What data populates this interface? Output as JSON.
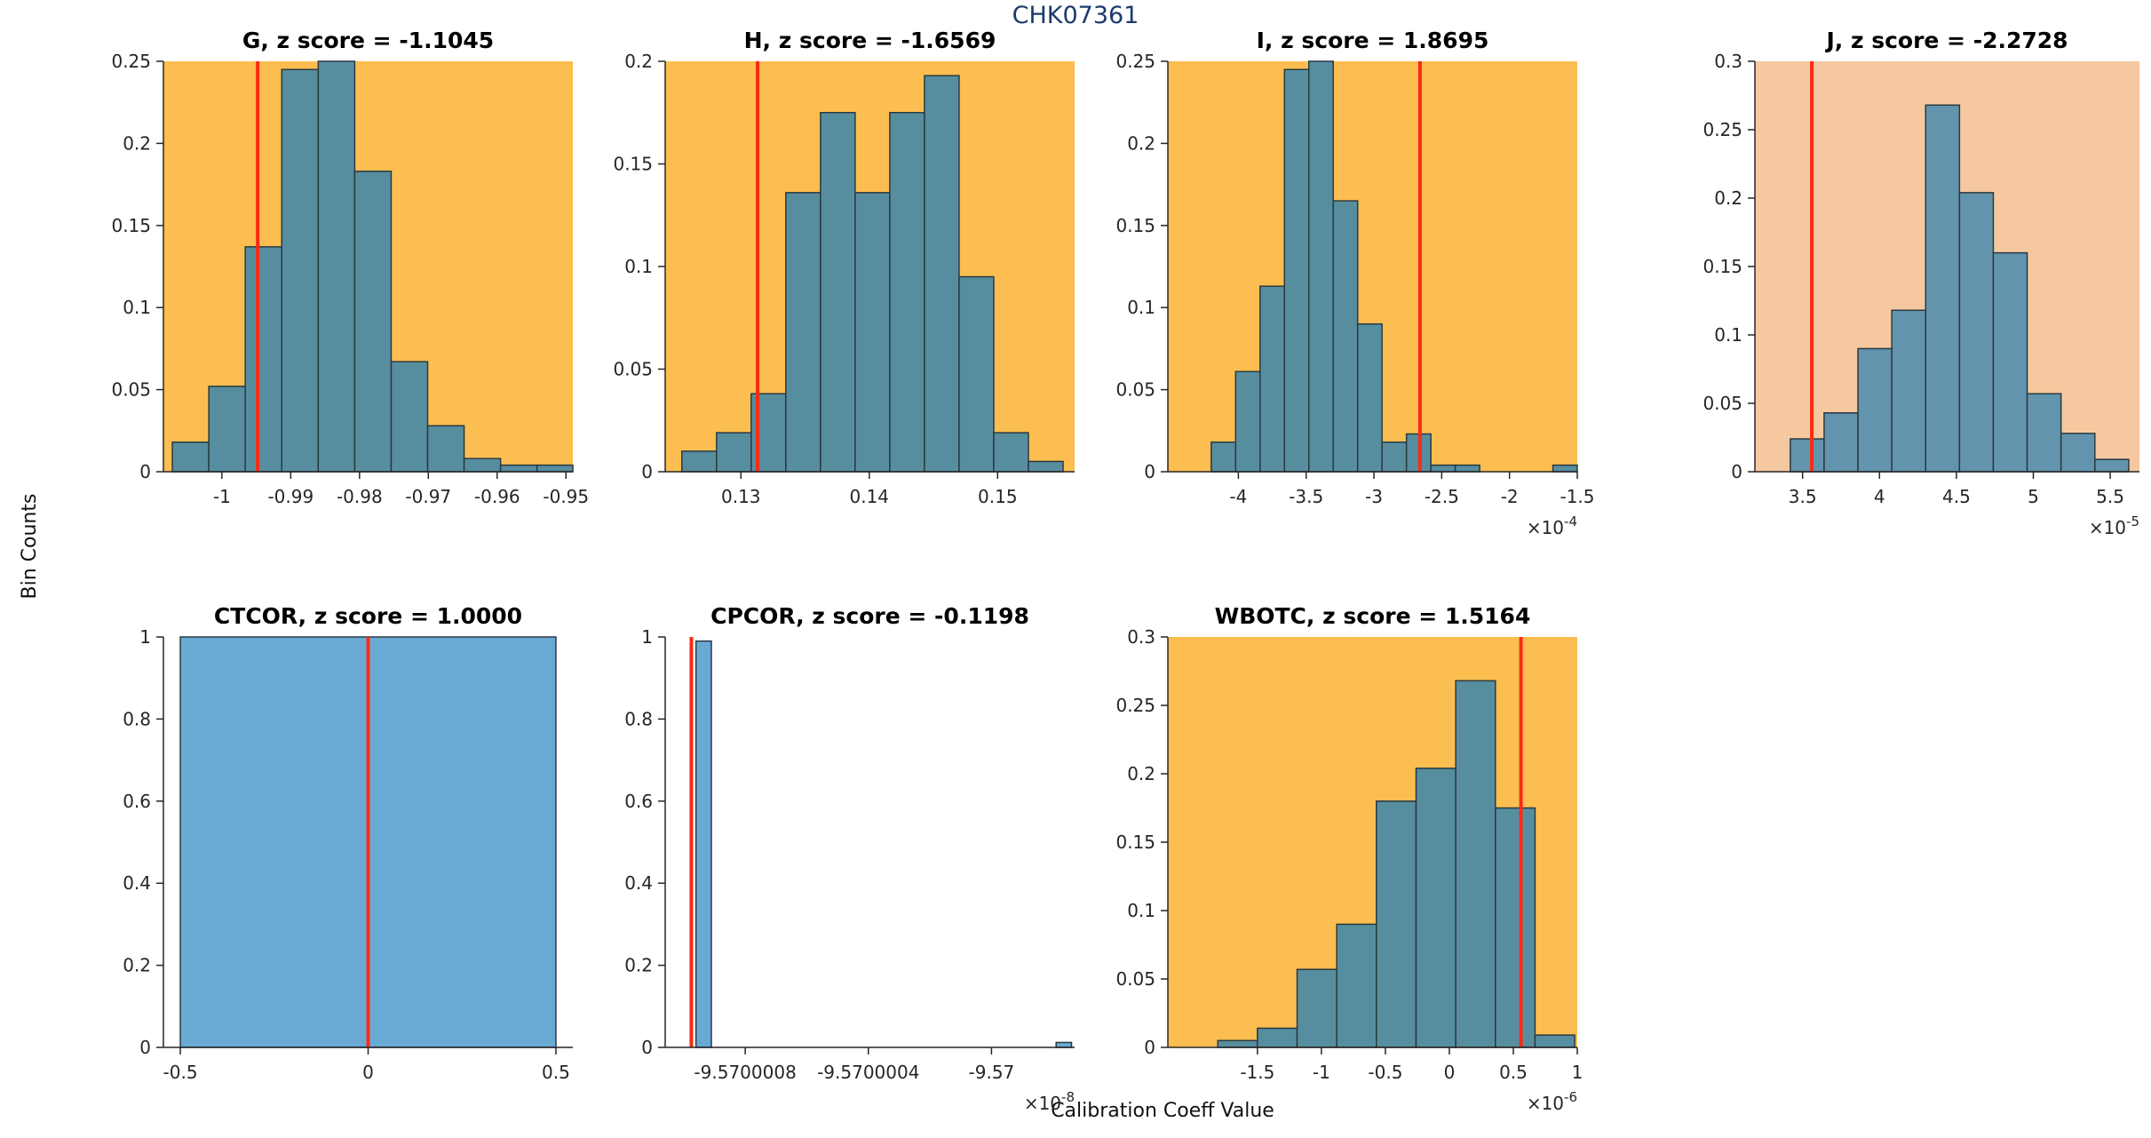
{
  "figure": {
    "title": "CHK07361",
    "title_color": "#1c3a6d",
    "ylabel": "Bin Counts",
    "xlabel": "Calibration Coeff Value"
  },
  "colors": {
    "red_line": "#f82c14",
    "axis": "#262626"
  },
  "chart_data": [
    {
      "type": "bar",
      "name": "G",
      "title": "G, z score = -1.1045",
      "z_score": -1.1045,
      "plot_bg": "#fcbe50",
      "bar_fill": "#578e9f",
      "bar_edge": "#2a3940",
      "xlim": [
        -1.0085,
        -0.949
      ],
      "ylim": [
        0,
        0.25
      ],
      "xticks": [
        -1,
        -0.99,
        -0.98,
        -0.97,
        -0.96,
        -0.95
      ],
      "xtick_labels": [
        "-1",
        "-0.99",
        "-0.98",
        "-0.97",
        "-0.96",
        "-0.95"
      ],
      "yticks": [
        0,
        0.05,
        0.1,
        0.15,
        0.2,
        0.25
      ],
      "ytick_labels": [
        "0",
        "0.05",
        "0.1",
        "0.15",
        "0.2",
        "0.25"
      ],
      "x_exponent": null,
      "bins_start": -1.0072,
      "bin_width": 0.0053,
      "values": [
        0.018,
        0.052,
        0.137,
        0.245,
        0.25,
        0.183,
        0.067,
        0.028,
        0.008,
        0.004,
        0.004
      ],
      "red_line_x": -0.9948
    },
    {
      "type": "bar",
      "name": "H",
      "title": "H, z score = -1.6569",
      "z_score": -1.6569,
      "plot_bg": "#fcbe50",
      "bar_fill": "#578e9f",
      "bar_edge": "#2a3940",
      "xlim": [
        0.1241,
        0.156
      ],
      "ylim": [
        0,
        0.2
      ],
      "xticks": [
        0.13,
        0.14,
        0.15
      ],
      "xtick_labels": [
        "0.13",
        "0.14",
        "0.15"
      ],
      "yticks": [
        0,
        0.05,
        0.1,
        0.15,
        0.2
      ],
      "ytick_labels": [
        "0",
        "0.05",
        "0.1",
        "0.15",
        "0.2"
      ],
      "x_exponent": null,
      "bins_start": 0.1254,
      "bin_width": 0.0027,
      "values": [
        0.01,
        0.019,
        0.038,
        0.136,
        0.175,
        0.136,
        0.175,
        0.193,
        0.095,
        0.019,
        0.005
      ],
      "red_line_x": 0.1313
    },
    {
      "type": "bar",
      "name": "I",
      "title": "I, z score = 1.8695",
      "z_score": 1.8695,
      "plot_bg": "#fcbe50",
      "bar_fill": "#578e9f",
      "bar_edge": "#2a3940",
      "xlim": [
        -0.000452,
        -0.00015
      ],
      "ylim": [
        0,
        0.25
      ],
      "xticks": [
        -0.0004,
        -0.00035,
        -0.0003,
        -0.00025,
        -0.0002,
        -0.00015
      ],
      "xtick_labels": [
        "-4",
        "-3.5",
        "-3",
        "-2.5",
        "-2",
        "-1.5"
      ],
      "yticks": [
        0,
        0.05,
        0.1,
        0.15,
        0.2,
        0.25
      ],
      "ytick_labels": [
        "0",
        "0.05",
        "0.1",
        "0.15",
        "0.2",
        "0.25"
      ],
      "x_exponent": "-4",
      "bins_start": -0.00042,
      "bin_width": 1.8e-05,
      "values": [
        0.018,
        0.061,
        0.113,
        0.245,
        0.25,
        0.165,
        0.09,
        0.018,
        0.023,
        0.004,
        0.004,
        0,
        0,
        0,
        0.004
      ],
      "red_line_x": -0.000266
    },
    {
      "type": "bar",
      "name": "J",
      "title": "J, z score = -2.2728",
      "z_score": -2.2728,
      "plot_bg": "#f6c8a0",
      "bar_fill": "#6394ae",
      "bar_edge": "#2a3940",
      "xlim": [
        3.19e-05,
        5.69e-05
      ],
      "ylim": [
        0,
        0.3
      ],
      "xticks": [
        3.5e-05,
        4e-05,
        4.5e-05,
        5e-05,
        5.5e-05
      ],
      "xtick_labels": [
        "3.5",
        "4",
        "4.5",
        "5",
        "5.5"
      ],
      "yticks": [
        0,
        0.05,
        0.1,
        0.15,
        0.2,
        0.25,
        0.3
      ],
      "ytick_labels": [
        "0",
        "0.05",
        "0.1",
        "0.15",
        "0.2",
        "0.25",
        "0.3"
      ],
      "x_exponent": "-5",
      "bins_start": 3.42e-05,
      "bin_width": 2.2e-06,
      "values": [
        0.024,
        0.043,
        0.09,
        0.118,
        0.268,
        0.204,
        0.16,
        0.057,
        0.028,
        0.009
      ],
      "red_line_x": 3.56e-05
    },
    {
      "type": "bar",
      "name": "CTCOR",
      "title": "CTCOR, z score = 1.0000",
      "z_score": 1.0,
      "plot_bg": "#ffffff",
      "bar_fill": "#69aad5",
      "bar_edge": "#2a3940",
      "xlim": [
        -0.545,
        0.545
      ],
      "ylim": [
        0,
        1
      ],
      "xticks": [
        -0.5,
        0,
        0.5
      ],
      "xtick_labels": [
        "-0.5",
        "0",
        "0.5"
      ],
      "yticks": [
        0,
        0.2,
        0.4,
        0.6,
        0.8,
        1
      ],
      "ytick_labels": [
        "0",
        "0.2",
        "0.4",
        "0.6",
        "0.8",
        "1"
      ],
      "x_exponent": null,
      "bins_start": -0.5,
      "bin_width": 1.0,
      "values": [
        1.0
      ],
      "red_line_x": 0
    },
    {
      "type": "bar",
      "name": "CPCOR",
      "title": "CPCOR, z score = -0.1198",
      "z_score": -0.1198,
      "plot_bg": "#ffffff",
      "bar_fill": "#69aad5",
      "bar_edge": "#2a3940",
      "xlim": [
        -9.57000106,
        -9.56999973
      ],
      "ylim": [
        0,
        1
      ],
      "xticks": [
        -9.5700008,
        -9.5700004,
        -9.57
      ],
      "xtick_labels": [
        "-9.5700008",
        "-9.5700004",
        "-9.57"
      ],
      "yticks": [
        0,
        0.2,
        0.4,
        0.6,
        0.8,
        1
      ],
      "ytick_labels": [
        "0",
        "0.2",
        "0.4",
        "0.6",
        "0.8",
        "1"
      ],
      "x_exponent": "-8",
      "bins_start": -9.57000096,
      "bin_width": 5e-08,
      "values": [
        0.99
      ],
      "extra_bars": [
        {
          "x0": -9.56999979,
          "x1": -9.56999974,
          "h": 0.012
        }
      ],
      "red_line_x": -9.570000975
    },
    {
      "type": "bar",
      "name": "WBOTC",
      "title": "WBOTC, z score = 1.5164",
      "z_score": 1.5164,
      "plot_bg": "#fcbe50",
      "bar_fill": "#578e9f",
      "bar_edge": "#2a3940",
      "xlim": [
        -2.2e-06,
        1e-06
      ],
      "ylim": [
        0,
        0.3
      ],
      "xticks": [
        -1.5e-06,
        -1e-06,
        -5e-07,
        0,
        5e-07,
        1e-06
      ],
      "xtick_labels": [
        "-1.5",
        "-1",
        "-0.5",
        "0",
        "0.5",
        "1"
      ],
      "yticks": [
        0,
        0.05,
        0.1,
        0.15,
        0.2,
        0.25,
        0.3
      ],
      "ytick_labels": [
        "0",
        "0.05",
        "0.1",
        "0.15",
        "0.2",
        "0.25",
        "0.3"
      ],
      "x_exponent": "-6",
      "bins_start": -1.81e-06,
      "bin_width": 3.1e-07,
      "values": [
        0.005,
        0.014,
        0.057,
        0.09,
        0.18,
        0.204,
        0.268,
        0.175,
        0.009
      ],
      "red_line_x": 5.6e-07
    }
  ]
}
